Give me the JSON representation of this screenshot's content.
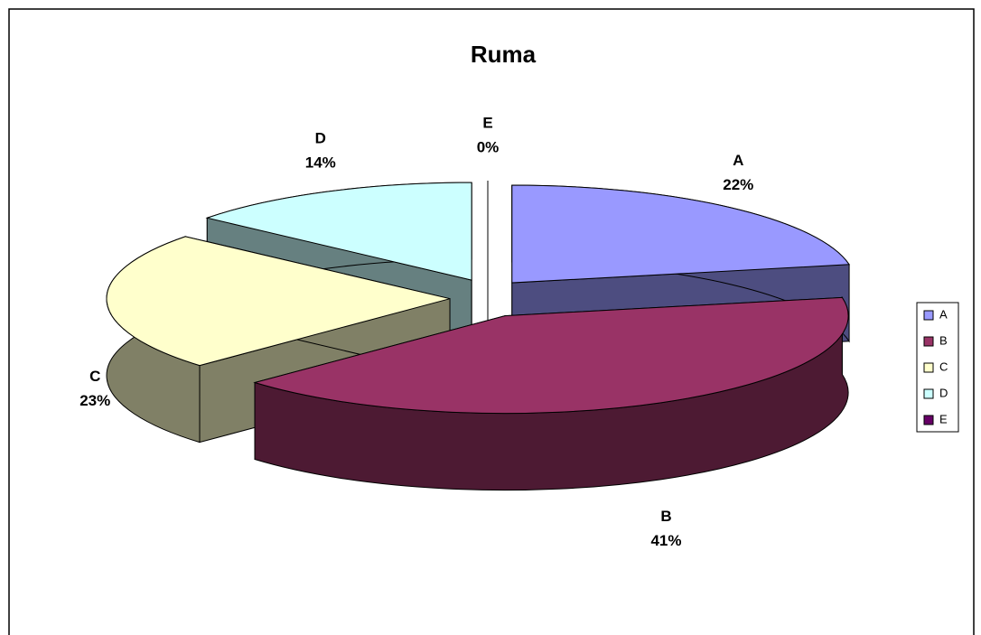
{
  "chart_data": {
    "type": "pie3d",
    "title": "Ruma",
    "categories": [
      "A",
      "B",
      "C",
      "D",
      "E"
    ],
    "values": [
      22,
      41,
      23,
      14,
      0
    ],
    "value_labels": [
      "22%",
      "41%",
      "23%",
      "14%",
      "0%"
    ],
    "colors": [
      "#9999ff",
      "#993366",
      "#ffffcc",
      "#ccffff",
      "#660066"
    ],
    "legend": "right"
  }
}
